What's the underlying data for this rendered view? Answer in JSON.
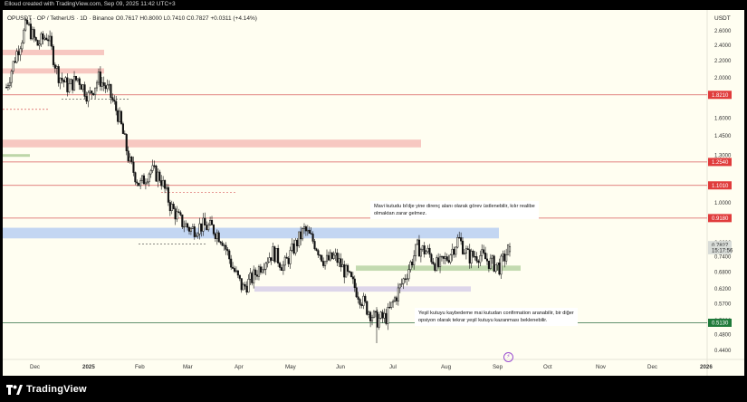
{
  "header": {
    "caption": "Elloud created with TradingView.com, Sep 09, 2025 11:42 UTC+3"
  },
  "symbol": {
    "text": "OPUSDT · OP / TetherUS · 1D · Binance  O0.7617  H0.8000  L0.7410  C0.7827  +0.0311 (+4.14%)"
  },
  "currency": "USDT",
  "footer": {
    "brand": "TradingView"
  },
  "annotations": {
    "note1": [
      "Mavi kutudu bi'dje yine direnç alanı olarak görev üstlenebilir, kılır realibe",
      "olmaktan zarar gelmez."
    ],
    "note2": [
      "Yeşil kutuyu kaybedeme mai kutudan confirmation aranabilir, bir diğer",
      "opsiyon olarak tekrar yeşil kutuyu kazanması beklenebilir."
    ]
  },
  "colors": {
    "up": "#111111",
    "down": "#111111",
    "red_line": "#d85a5a",
    "blue_box": "#bcd2f2",
    "green_box": "#bdd6a8",
    "purple_box": "#d9d2e9",
    "pink_box": "#f6c2bb",
    "label_red": "#e03c3c",
    "label_green": "#1f7a3a"
  },
  "chart_data": {
    "type": "candlestick",
    "symbol": "OPUSDT",
    "timeframe": "1D",
    "exchange": "Binance",
    "ohlc_last": {
      "open": 0.7617,
      "high": 0.8,
      "low": 0.741,
      "close": 0.7827,
      "change": 0.0311,
      "change_pct": "+4.14%"
    },
    "y_scale": "log",
    "ylim": [
      0.4,
      3.0
    ],
    "y_ticks": [
      "2.6000",
      "2.4000",
      "2.2000",
      "2.0000",
      "1.8000",
      "1.6000",
      "1.4500",
      "1.3000",
      "1.1000",
      "1.0000",
      "0.9200",
      "0.8000",
      "0.7400",
      "0.6800",
      "0.6200",
      "0.5700",
      "0.5200",
      "0.4800",
      "0.4400"
    ],
    "x_ticks": [
      "Dec",
      "2025",
      "Feb",
      "Mar",
      "Apr",
      "May",
      "Jun",
      "Jul",
      "Aug",
      "Sep",
      "Oct",
      "Nov",
      "Dec",
      "2026"
    ],
    "price_labels": [
      {
        "value": "1.8210",
        "bg": "#e03c3c"
      },
      {
        "value": "1.2540",
        "bg": "#e03c3c"
      },
      {
        "value": "1.1010",
        "bg": "#e03c3c"
      },
      {
        "value": "0.9180",
        "bg": "#e03c3c"
      },
      {
        "value": "0.7827",
        "bg": "#d8dcd8"
      },
      {
        "value": "15:17:56",
        "bg": "#d8dcd8"
      },
      {
        "value": "0.5130",
        "bg": "#1f7a3a"
      }
    ],
    "horizontal_lines": [
      1.821,
      1.254,
      1.101,
      0.918
    ],
    "support_line": 0.513,
    "zones": [
      {
        "name": "red-zone-1",
        "low": 2.27,
        "high": 2.34,
        "color": "pink"
      },
      {
        "name": "red-zone-2",
        "low": 2.05,
        "high": 2.11,
        "color": "pink"
      },
      {
        "name": "red-zone-3",
        "low": 1.36,
        "high": 1.42,
        "color": "pink"
      },
      {
        "name": "blue-zone",
        "low": 0.82,
        "high": 0.87,
        "color": "blue"
      },
      {
        "name": "green-zone",
        "low": 0.685,
        "high": 0.705,
        "color": "green"
      },
      {
        "name": "purple-zone",
        "low": 0.61,
        "high": 0.628,
        "color": "purple"
      }
    ],
    "price_path": [
      {
        "date": "Nov 22",
        "close": 1.9
      },
      {
        "date": "Nov 28",
        "close": 2.3
      },
      {
        "date": "Dec 04",
        "close": 2.7
      },
      {
        "date": "Dec 10",
        "close": 2.4
      },
      {
        "date": "Dec 16",
        "close": 2.55
      },
      {
        "date": "Dec 22",
        "close": 2.05
      },
      {
        "date": "Dec 28",
        "close": 1.9
      },
      {
        "date": "Jan 03",
        "close": 2.0
      },
      {
        "date": "Jan 09",
        "close": 1.8
      },
      {
        "date": "Jan 15",
        "close": 2.0
      },
      {
        "date": "Jan 21",
        "close": 1.85
      },
      {
        "date": "Jan 27",
        "close": 1.6
      },
      {
        "date": "Feb 02",
        "close": 1.25
      },
      {
        "date": "Feb 08",
        "close": 1.1
      },
      {
        "date": "Feb 14",
        "close": 1.2
      },
      {
        "date": "Feb 20",
        "close": 1.15
      },
      {
        "date": "Feb 26",
        "close": 0.98
      },
      {
        "date": "Mar 04",
        "close": 0.9
      },
      {
        "date": "Mar 10",
        "close": 0.86
      },
      {
        "date": "Mar 16",
        "close": 0.88
      },
      {
        "date": "Mar 22",
        "close": 0.87
      },
      {
        "date": "Mar 28",
        "close": 0.82
      },
      {
        "date": "Apr 03",
        "close": 0.7
      },
      {
        "date": "Apr 09",
        "close": 0.62
      },
      {
        "date": "Apr 15",
        "close": 0.66
      },
      {
        "date": "Apr 21",
        "close": 0.72
      },
      {
        "date": "Apr 27",
        "close": 0.76
      },
      {
        "date": "May 03",
        "close": 0.7
      },
      {
        "date": "May 09",
        "close": 0.78
      },
      {
        "date": "May 15",
        "close": 0.86
      },
      {
        "date": "May 21",
        "close": 0.8
      },
      {
        "date": "May 27",
        "close": 0.72
      },
      {
        "date": "Jun 02",
        "close": 0.74
      },
      {
        "date": "Jun 08",
        "close": 0.68
      },
      {
        "date": "Jun 14",
        "close": 0.62
      },
      {
        "date": "Jun 20",
        "close": 0.56
      },
      {
        "date": "Jun 26",
        "close": 0.52
      },
      {
        "date": "Jul 02",
        "close": 0.53
      },
      {
        "date": "Jul 08",
        "close": 0.6
      },
      {
        "date": "Jul 14",
        "close": 0.68
      },
      {
        "date": "Jul 20",
        "close": 0.78
      },
      {
        "date": "Jul 26",
        "close": 0.76
      },
      {
        "date": "Aug 01",
        "close": 0.7
      },
      {
        "date": "Aug 07",
        "close": 0.74
      },
      {
        "date": "Aug 13",
        "close": 0.82
      },
      {
        "date": "Aug 19",
        "close": 0.74
      },
      {
        "date": "Aug 25",
        "close": 0.75
      },
      {
        "date": "Aug 31",
        "close": 0.72
      },
      {
        "date": "Sep 05",
        "close": 0.7
      },
      {
        "date": "Sep 09",
        "close": 0.7827
      }
    ]
  }
}
